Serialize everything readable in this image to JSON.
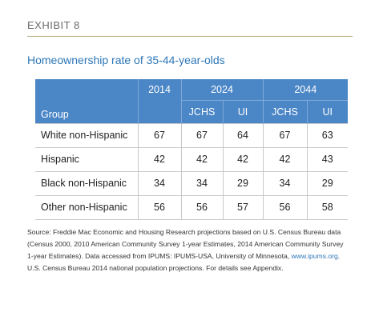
{
  "exhibit_label": "EXHIBIT 8",
  "title": "Homeownership rate of 35-44-year-olds",
  "table": {
    "header_years": [
      "2014",
      "2024",
      "2044"
    ],
    "group_label": "Group",
    "sub_headers": [
      "JCHS",
      "UI",
      "JCHS",
      "UI"
    ],
    "rows": [
      {
        "group": "White non-Hispanic",
        "values": [
          "67",
          "67",
          "64",
          "67",
          "63"
        ]
      },
      {
        "group": "Hispanic",
        "values": [
          "42",
          "42",
          "42",
          "42",
          "43"
        ]
      },
      {
        "group": "Black non-Hispanic",
        "values": [
          "34",
          "34",
          "29",
          "34",
          "29"
        ]
      },
      {
        "group": "Other non-Hispanic",
        "values": [
          "56",
          "56",
          "57",
          "56",
          "58"
        ]
      }
    ]
  },
  "source": {
    "text_before_link": "Source: Freddie Mac Economic and Housing Research projections based on U.S. Census Bureau data (Census 2000, 2010 American Community Survey 1-year Estimates, 2014 American Community Survey 1-year Estimates). Data accessed from IPUMS: IPUMS-USA, University of Minnesota, ",
    "link_text": "www.ipums.org",
    "text_after_link": ". U.S. Census Bureau 2014 national population projections. For details see Appendix."
  },
  "colors": {
    "header_background": "#4b86c6",
    "title_color": "#2e77b8",
    "rule_color": "#b8b48a"
  }
}
